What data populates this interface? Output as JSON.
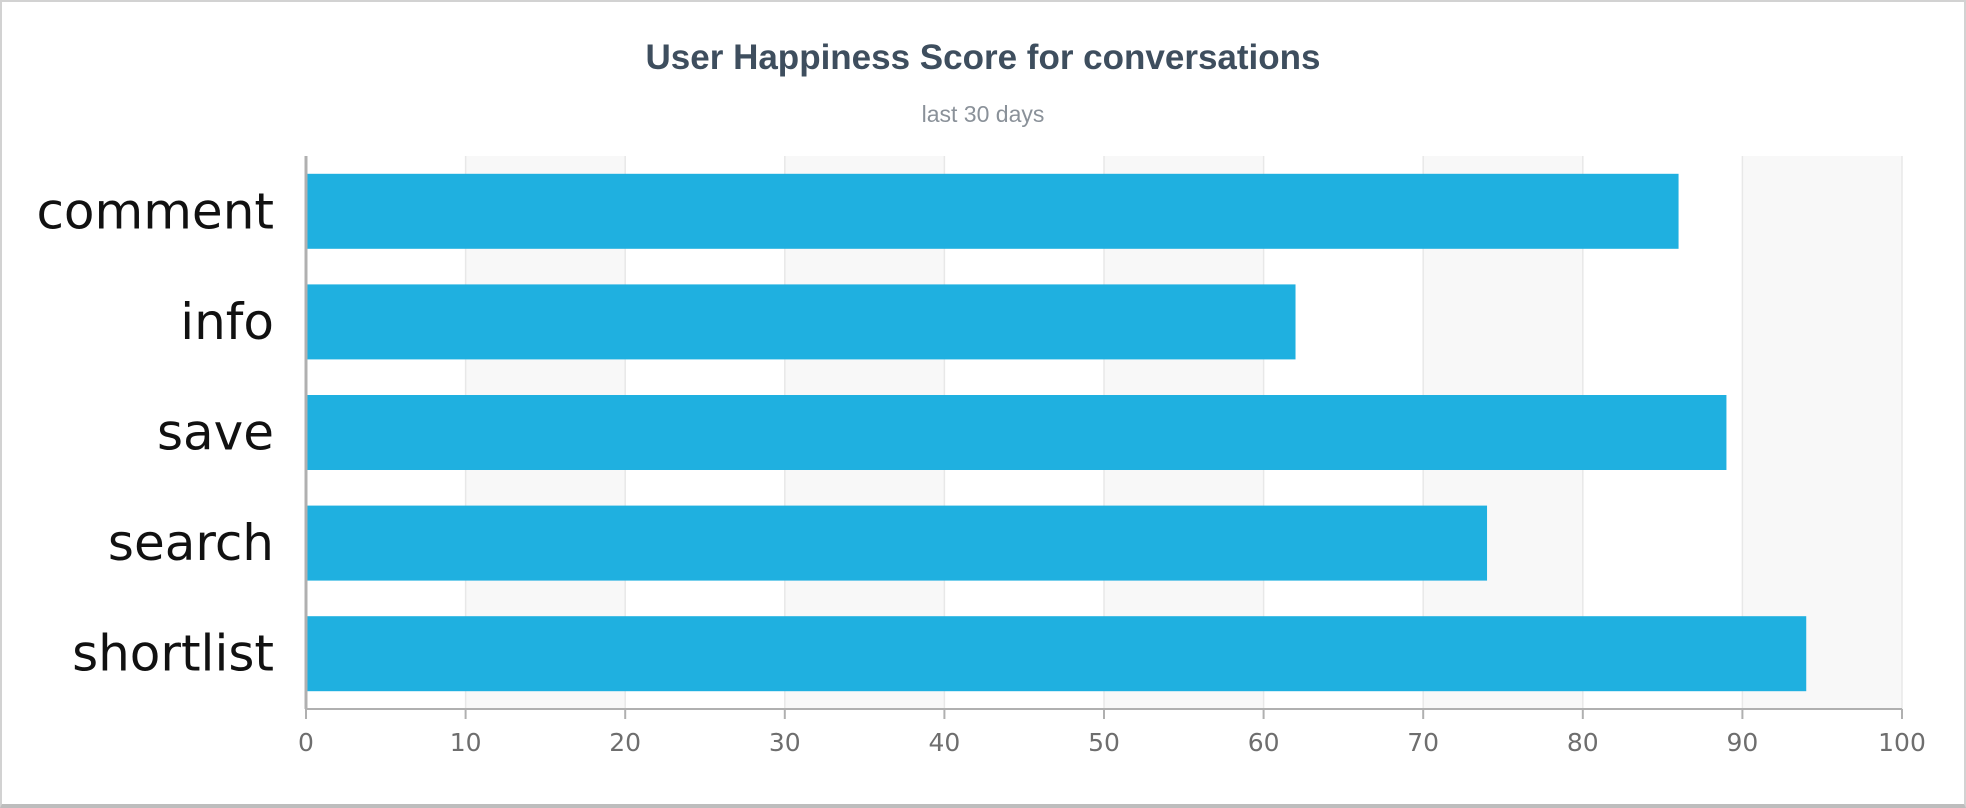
{
  "chart_data": {
    "type": "bar",
    "orientation": "horizontal",
    "title": "User Happiness Score for conversations",
    "subtitle": "last 30 days",
    "categories": [
      "comment",
      "info",
      "save",
      "search",
      "shortlist"
    ],
    "values": [
      86,
      62,
      89,
      74,
      94
    ],
    "xlim": [
      0,
      100
    ],
    "x_ticks": [
      0,
      10,
      20,
      30,
      40,
      50,
      60,
      70,
      80,
      90,
      100
    ],
    "grid": true,
    "legend": "none",
    "colors": {
      "bar": "#1fb0e0",
      "band": "#f8f8f8",
      "grid": "#e8e8e8",
      "axis": "#b0b0b0"
    }
  }
}
